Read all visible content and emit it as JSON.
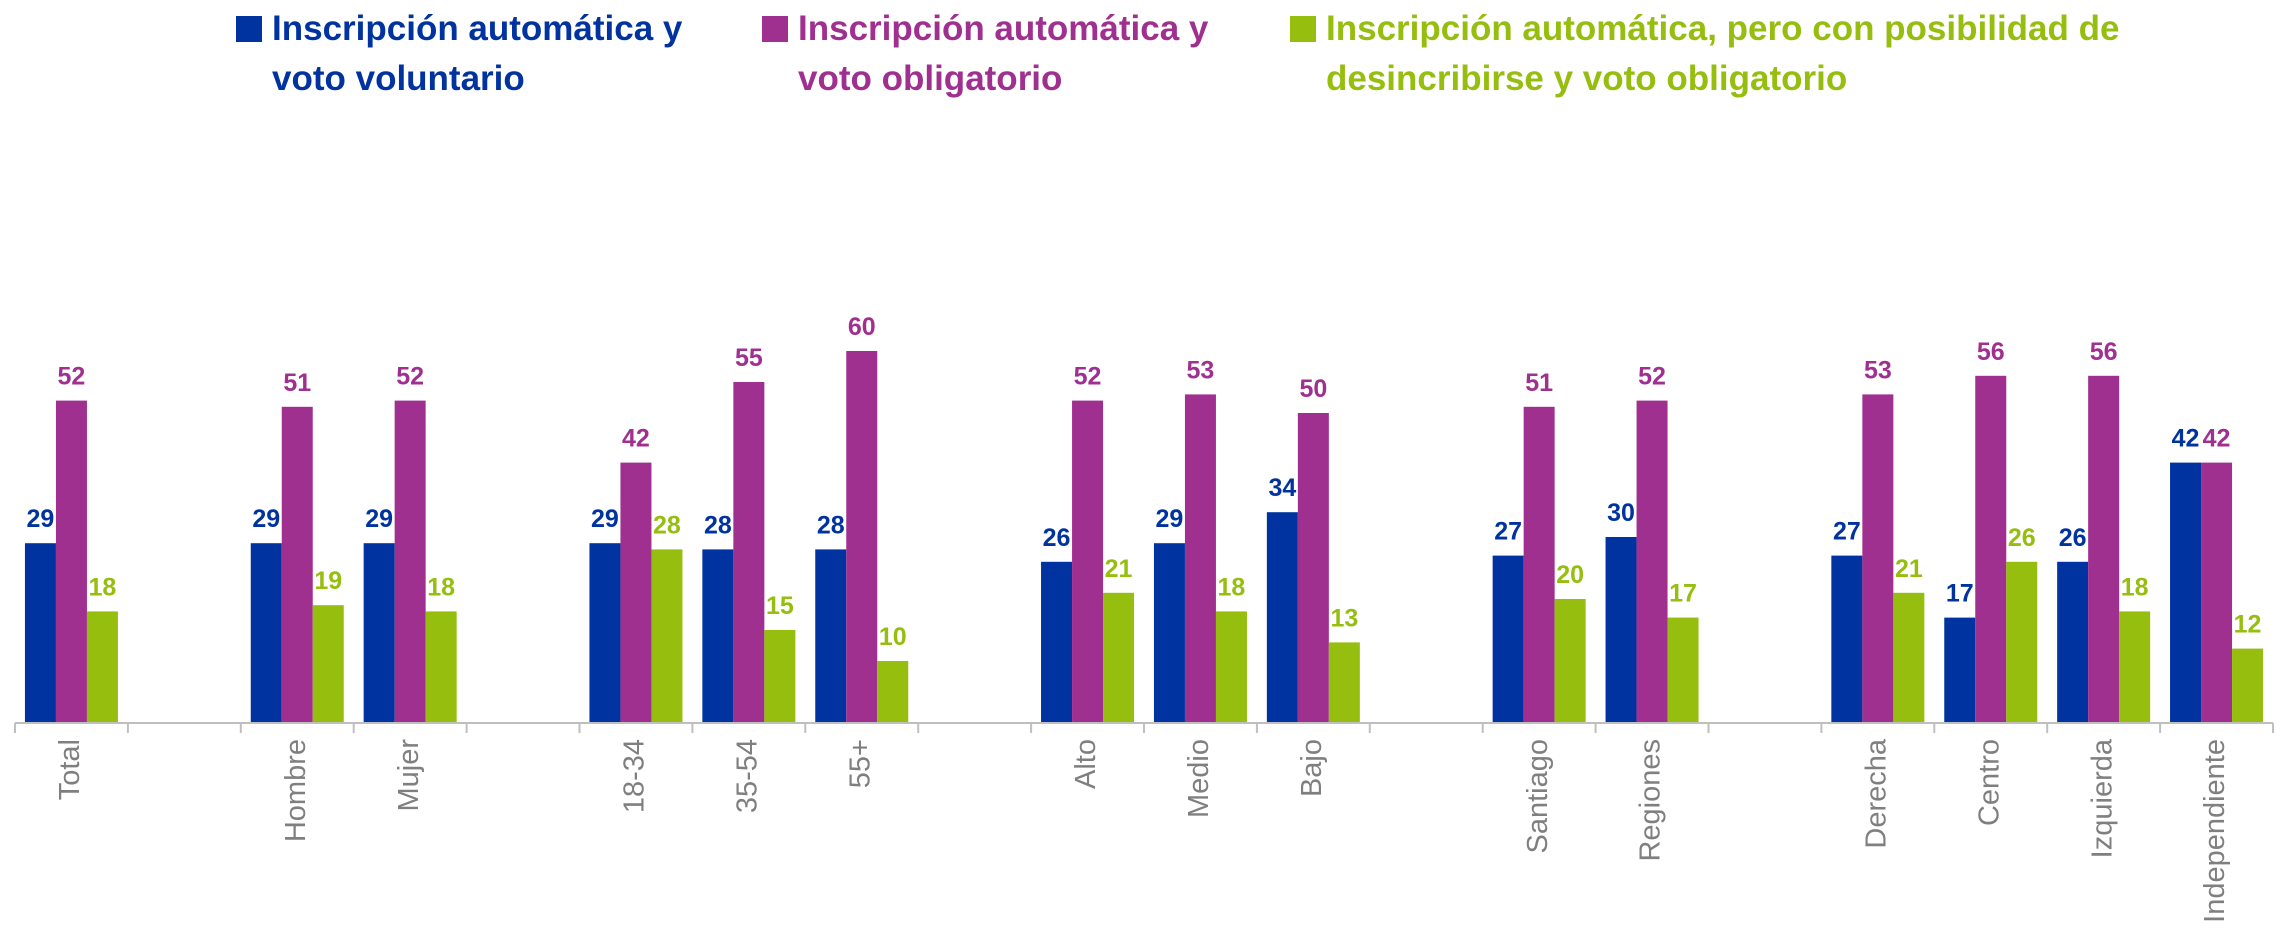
{
  "chart_data": {
    "type": "bar",
    "categories": [
      "Total",
      null,
      "Hombre",
      "Mujer",
      null,
      "18-34",
      "35-54",
      "55+",
      null,
      "Alto",
      "Medio",
      "Bajo",
      null,
      "Santiago",
      "Regiones",
      null,
      "Derecha",
      "Centro",
      "Izquierda",
      "Independiente"
    ],
    "series": [
      {
        "name": "Inscripción automática y voto voluntario",
        "color": "#0033a0",
        "values": [
          29,
          null,
          29,
          29,
          null,
          29,
          28,
          28,
          null,
          26,
          29,
          34,
          null,
          27,
          30,
          null,
          27,
          17,
          26,
          42
        ]
      },
      {
        "name": "Inscripción automática y voto obligatorio",
        "color": "#a03090",
        "values": [
          52,
          null,
          51,
          52,
          null,
          42,
          55,
          60,
          null,
          52,
          53,
          50,
          null,
          51,
          52,
          null,
          53,
          56,
          56,
          42
        ]
      },
      {
        "name": "Inscripción automática, pero con posibilidad de desincribirse y voto obligatorio",
        "color": "#96be0e",
        "values": [
          18,
          null,
          19,
          18,
          null,
          28,
          15,
          10,
          null,
          21,
          18,
          13,
          null,
          20,
          17,
          null,
          21,
          26,
          18,
          12
        ]
      }
    ],
    "ylim": [
      0,
      80
    ]
  }
}
